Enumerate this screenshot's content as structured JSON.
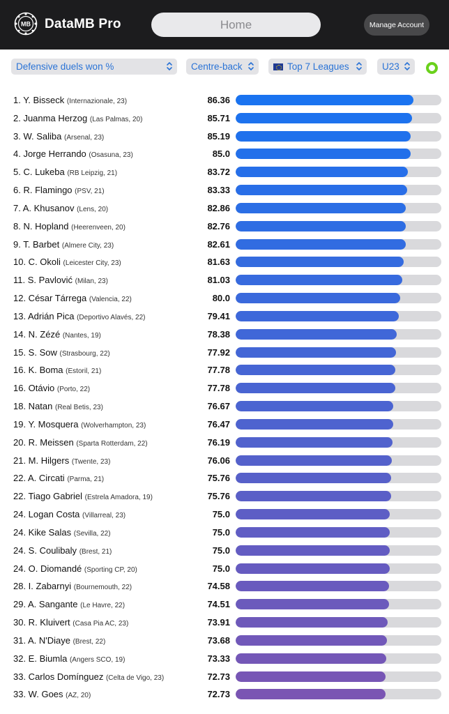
{
  "header": {
    "app_title": "DataMB Pro",
    "home_label": "Home",
    "manage_label": "Manage Account",
    "logo_icon": "mb-logo-icon"
  },
  "filters": {
    "metric": "Defensive duels won %",
    "position": "Centre-back",
    "league": "Top 7 Leagues",
    "age": "U23",
    "status_color": "#6ad11c"
  },
  "scale": {
    "max": 100
  },
  "colors": {
    "bar_start": "#1a73f0",
    "bar_end": "#7a55b3",
    "track": "#d9d9dc"
  },
  "players": [
    {
      "name": "1. Y. Bisseck",
      "meta": "(Internazionale, 23)",
      "value": "86.36"
    },
    {
      "name": "2. Juanma Herzog",
      "meta": "(Las Palmas, 20)",
      "value": "85.71"
    },
    {
      "name": "3. W. Saliba",
      "meta": "(Arsenal, 23)",
      "value": "85.19"
    },
    {
      "name": "4. Jorge Herrando",
      "meta": "(Osasuna, 23)",
      "value": "85.0"
    },
    {
      "name": "5. C. Lukeba",
      "meta": "(RB Leipzig, 21)",
      "value": "83.72"
    },
    {
      "name": "6. R. Flamingo",
      "meta": "(PSV, 21)",
      "value": "83.33"
    },
    {
      "name": "7. A. Khusanov",
      "meta": "(Lens, 20)",
      "value": "82.86"
    },
    {
      "name": "8. N. Hopland",
      "meta": "(Heerenveen, 20)",
      "value": "82.76"
    },
    {
      "name": "9. T. Barbet",
      "meta": "(Almere City, 23)",
      "value": "82.61"
    },
    {
      "name": "10. C. Okoli",
      "meta": "(Leicester City, 23)",
      "value": "81.63"
    },
    {
      "name": "11. S. Pavlović",
      "meta": "(Milan, 23)",
      "value": "81.03"
    },
    {
      "name": "12. César Tárrega",
      "meta": "(Valencia, 22)",
      "value": "80.0"
    },
    {
      "name": "13. Adrián Pica",
      "meta": "(Deportivo Alavés, 22)",
      "value": "79.41"
    },
    {
      "name": "14. N. Zézé",
      "meta": "(Nantes, 19)",
      "value": "78.38"
    },
    {
      "name": "15. S. Sow",
      "meta": "(Strasbourg, 22)",
      "value": "77.92"
    },
    {
      "name": "16. K. Boma",
      "meta": "(Estoril, 21)",
      "value": "77.78"
    },
    {
      "name": "16. Otávio",
      "meta": "(Porto, 22)",
      "value": "77.78"
    },
    {
      "name": "18. Natan",
      "meta": "(Real Betis, 23)",
      "value": "76.67"
    },
    {
      "name": "19. Y. Mosquera",
      "meta": "(Wolverhampton, 23)",
      "value": "76.47"
    },
    {
      "name": "20. R. Meissen",
      "meta": "(Sparta Rotterdam, 22)",
      "value": "76.19"
    },
    {
      "name": "21. M. Hilgers",
      "meta": "(Twente, 23)",
      "value": "76.06"
    },
    {
      "name": "22. A. Circati",
      "meta": "(Parma, 21)",
      "value": "75.76"
    },
    {
      "name": "22. Tiago Gabriel",
      "meta": "(Estrela Amadora, 19)",
      "value": "75.76"
    },
    {
      "name": "24. Logan Costa",
      "meta": "(Villarreal, 23)",
      "value": "75.0"
    },
    {
      "name": "24. Kike Salas",
      "meta": "(Sevilla, 22)",
      "value": "75.0"
    },
    {
      "name": "24. S. Coulibaly",
      "meta": "(Brest, 21)",
      "value": "75.0"
    },
    {
      "name": "24. O. Diomandé",
      "meta": "(Sporting CP, 20)",
      "value": "75.0"
    },
    {
      "name": "28. I. Zabarnyi",
      "meta": "(Bournemouth, 22)",
      "value": "74.58"
    },
    {
      "name": "29. A. Sangante",
      "meta": "(Le Havre, 22)",
      "value": "74.51"
    },
    {
      "name": "30. R. Kluivert",
      "meta": "(Casa Pia AC, 23)",
      "value": "73.91"
    },
    {
      "name": "31. A. N'Diaye",
      "meta": "(Brest, 22)",
      "value": "73.68"
    },
    {
      "name": "32. E. Biumla",
      "meta": "(Angers SCO, 19)",
      "value": "73.33"
    },
    {
      "name": "33. Carlos Domínguez",
      "meta": "(Celta de Vigo, 23)",
      "value": "72.73"
    },
    {
      "name": "33. W. Goes",
      "meta": "(AZ, 20)",
      "value": "72.73"
    }
  ]
}
